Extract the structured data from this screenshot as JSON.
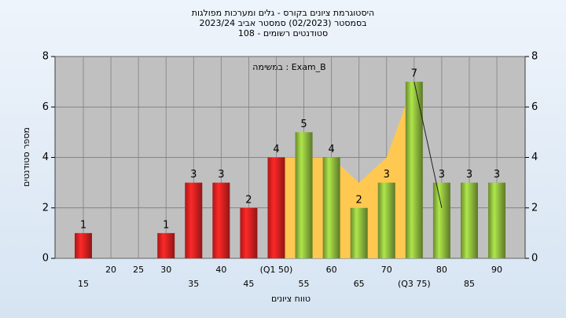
{
  "chart_data": {
    "type": "bar",
    "title": [
      "היסטוגרמת ציונים בקורס - גלים ומערכות מפולגות",
      "בסמסטר  (02/2023)  סמסטר אביב 2023/24",
      "סטודנטים רשומים - 108"
    ],
    "annotation": "במשימה : Exam_B",
    "y_label": "מספר סטודנטים",
    "x_label": "טווח ציונים",
    "categories": [
      "15",
      "20",
      "25",
      "30",
      "35",
      "40",
      "45",
      "(Q1 50)",
      "55",
      "60",
      "65",
      "70",
      "(Q3 75)",
      "80",
      "85",
      "90"
    ],
    "values": [
      1,
      0,
      0,
      1,
      3,
      3,
      2,
      4,
      5,
      4,
      2,
      3,
      7,
      3,
      3,
      3
    ],
    "colors": [
      "#e02020",
      "#e02020",
      "#e02020",
      "#e02020",
      "#e02020",
      "#e02020",
      "#e02020",
      "#e02020",
      "#8cb83c",
      "#8cb83c",
      "#8cb83c",
      "#8cb83c",
      "#8cb83c",
      "#8cb83c",
      "#8cb83c",
      "#8cb83c"
    ],
    "area": {
      "color": "#ffc850",
      "values": [
        null,
        null,
        null,
        null,
        null,
        null,
        null,
        4,
        4,
        4,
        3,
        4,
        7,
        null,
        null,
        null
      ]
    },
    "line": {
      "color": "#202020",
      "values": [
        null,
        null,
        null,
        null,
        null,
        null,
        null,
        null,
        null,
        null,
        null,
        null,
        7,
        2,
        null,
        null
      ]
    },
    "ylim": [
      0,
      8
    ],
    "yticks": [
      0,
      2,
      4,
      6,
      8
    ],
    "y2lim": [
      0,
      8
    ],
    "y2ticks": [
      0,
      2,
      4,
      6,
      8
    ],
    "grid": true
  }
}
